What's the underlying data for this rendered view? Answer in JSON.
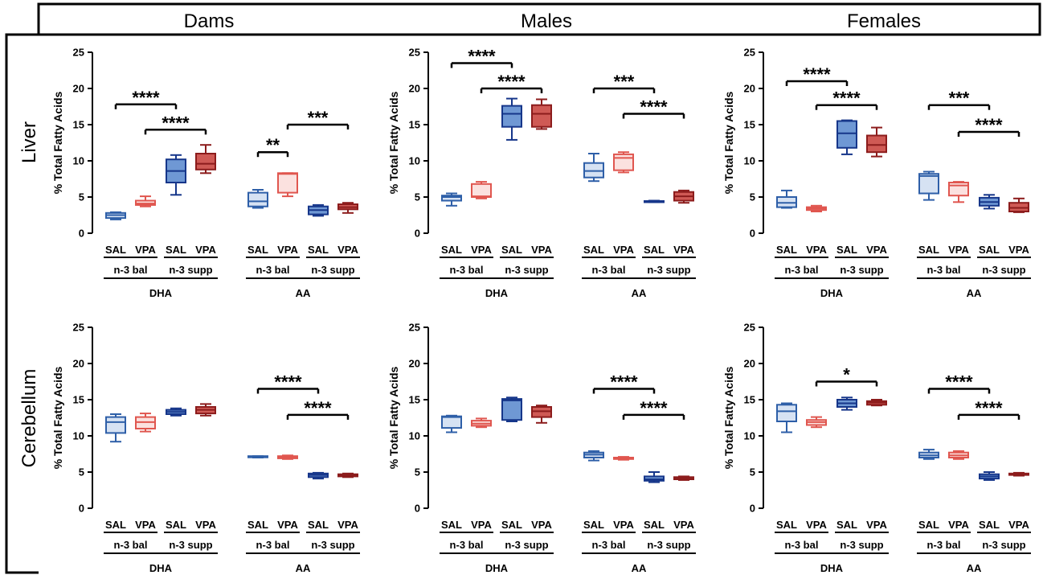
{
  "column_headers": [
    "Dams",
    "Males",
    "Females"
  ],
  "row_labels": [
    "Liver",
    "Cerebellum"
  ],
  "ylabel": "% Total Fatty Acids",
  "yticks": [
    "0",
    "5",
    "10",
    "15",
    "20",
    "25"
  ],
  "treatment_labels": [
    "SAL",
    "VPA",
    "SAL",
    "VPA"
  ],
  "diet_labels": [
    "n-3 bal",
    "n-3 supp"
  ],
  "fatty_acid_labels": [
    "DHA",
    "AA"
  ],
  "colors": {
    "n3bal_SAL": {
      "fill": "#d6e2f3",
      "stroke": "#2e5fa8"
    },
    "n3bal_VPA": {
      "fill": "#fbe1df",
      "stroke": "#e0564f"
    },
    "n3supp_SAL": {
      "fill": "#6f98d4",
      "stroke": "#16368a"
    },
    "n3supp_VPA": {
      "fill": "#cf5a55",
      "stroke": "#8c1c1c"
    }
  },
  "chart_data": [
    {
      "type": "box",
      "tissue": "Liver",
      "group": "Dams",
      "ylim": [
        0,
        25
      ],
      "boxes": [
        {
          "whislo": 1.9,
          "q1": 2.1,
          "med": 2.5,
          "q3": 2.8,
          "whishi": 2.9
        },
        {
          "whislo": 3.7,
          "q1": 3.9,
          "med": 4.1,
          "q3": 4.5,
          "whishi": 5.1
        },
        {
          "whislo": 5.3,
          "q1": 7.0,
          "med": 8.6,
          "q3": 10.2,
          "whishi": 10.8
        },
        {
          "whislo": 8.3,
          "q1": 8.8,
          "med": 9.6,
          "q3": 11.0,
          "whishi": 12.2
        },
        {
          "whislo": 3.5,
          "q1": 3.7,
          "med": 4.4,
          "q3": 5.6,
          "whishi": 6.0
        },
        {
          "whislo": 5.1,
          "q1": 5.6,
          "med": 8.2,
          "q3": 8.3,
          "whishi": 8.3
        },
        {
          "whislo": 2.4,
          "q1": 2.6,
          "med": 3.2,
          "q3": 3.7,
          "whishi": 3.9
        },
        {
          "whislo": 2.8,
          "q1": 3.3,
          "med": 3.6,
          "q3": 4.0,
          "whishi": 4.2
        }
      ],
      "comparisons": [
        {
          "from": 0,
          "to": 2,
          "y": 17.8,
          "label": "****"
        },
        {
          "from": 1,
          "to": 3,
          "y": 14.3,
          "label": "****"
        },
        {
          "from": 4,
          "to": 5,
          "y": 11.2,
          "label": "**"
        },
        {
          "from": 5,
          "to": 7,
          "y": 15.0,
          "label": "***"
        }
      ]
    },
    {
      "type": "box",
      "tissue": "Liver",
      "group": "Males",
      "ylim": [
        0,
        25
      ],
      "boxes": [
        {
          "whislo": 3.8,
          "q1": 4.5,
          "med": 5.0,
          "q3": 5.2,
          "whishi": 5.5
        },
        {
          "whislo": 4.8,
          "q1": 5.0,
          "med": 5.1,
          "q3": 6.8,
          "whishi": 7.1
        },
        {
          "whislo": 12.9,
          "q1": 14.7,
          "med": 16.5,
          "q3": 17.6,
          "whishi": 18.6
        },
        {
          "whislo": 14.4,
          "q1": 14.7,
          "med": 16.5,
          "q3": 17.7,
          "whishi": 18.5
        },
        {
          "whislo": 7.2,
          "q1": 7.7,
          "med": 8.6,
          "q3": 9.7,
          "whishi": 11.0
        },
        {
          "whislo": 8.4,
          "q1": 8.7,
          "med": 10.4,
          "q3": 10.9,
          "whishi": 11.2
        },
        {
          "whislo": 4.3,
          "q1": 4.35,
          "med": 4.4,
          "q3": 4.45,
          "whishi": 4.5
        },
        {
          "whislo": 4.2,
          "q1": 4.5,
          "med": 5.1,
          "q3": 5.7,
          "whishi": 5.9
        }
      ],
      "comparisons": [
        {
          "from": 0,
          "to": 2,
          "y": 23.5,
          "label": "****"
        },
        {
          "from": 1,
          "to": 3,
          "y": 20.0,
          "label": "****"
        },
        {
          "from": 4,
          "to": 6,
          "y": 20.0,
          "label": "***"
        },
        {
          "from": 5,
          "to": 7,
          "y": 16.5,
          "label": "****"
        }
      ]
    },
    {
      "type": "box",
      "tissue": "Liver",
      "group": "Females",
      "ylim": [
        0,
        25
      ],
      "boxes": [
        {
          "whislo": 3.5,
          "q1": 3.6,
          "med": 4.2,
          "q3": 5.0,
          "whishi": 5.9
        },
        {
          "whislo": 3.0,
          "q1": 3.2,
          "med": 3.4,
          "q3": 3.6,
          "whishi": 3.8
        },
        {
          "whislo": 10.9,
          "q1": 11.8,
          "med": 13.8,
          "q3": 15.5,
          "whishi": 15.6
        },
        {
          "whislo": 10.6,
          "q1": 11.2,
          "med": 12.2,
          "q3": 13.5,
          "whishi": 14.6
        },
        {
          "whislo": 4.6,
          "q1": 5.5,
          "med": 7.9,
          "q3": 8.2,
          "whishi": 8.5
        },
        {
          "whislo": 4.3,
          "q1": 5.2,
          "med": 6.6,
          "q3": 7.0,
          "whishi": 7.1
        },
        {
          "whislo": 3.4,
          "q1": 3.8,
          "med": 4.3,
          "q3": 4.9,
          "whishi": 5.3
        },
        {
          "whislo": 2.9,
          "q1": 3.0,
          "med": 3.5,
          "q3": 4.2,
          "whishi": 4.8
        }
      ],
      "comparisons": [
        {
          "from": 0,
          "to": 2,
          "y": 21.0,
          "label": "****"
        },
        {
          "from": 1,
          "to": 3,
          "y": 17.7,
          "label": "****"
        },
        {
          "from": 4,
          "to": 6,
          "y": 17.7,
          "label": "***"
        },
        {
          "from": 5,
          "to": 7,
          "y": 14.0,
          "label": "****"
        }
      ]
    },
    {
      "type": "box",
      "tissue": "Cerebellum",
      "group": "Dams",
      "ylim": [
        0,
        25
      ],
      "boxes": [
        {
          "whislo": 9.2,
          "q1": 10.4,
          "med": 11.9,
          "q3": 12.6,
          "whishi": 13.0
        },
        {
          "whislo": 10.6,
          "q1": 11.0,
          "med": 11.9,
          "q3": 12.6,
          "whishi": 13.1
        },
        {
          "whislo": 12.8,
          "q1": 13.0,
          "med": 13.3,
          "q3": 13.6,
          "whishi": 13.8
        },
        {
          "whislo": 12.8,
          "q1": 13.1,
          "med": 13.6,
          "q3": 14.0,
          "whishi": 14.4
        },
        {
          "whislo": 7.0,
          "q1": 7.05,
          "med": 7.1,
          "q3": 7.2,
          "whishi": 7.2
        },
        {
          "whislo": 6.8,
          "q1": 6.9,
          "med": 7.0,
          "q3": 7.2,
          "whishi": 7.3
        },
        {
          "whislo": 4.1,
          "q1": 4.3,
          "med": 4.6,
          "q3": 4.8,
          "whishi": 4.9
        },
        {
          "whislo": 4.3,
          "q1": 4.4,
          "med": 4.5,
          "q3": 4.7,
          "whishi": 4.8
        }
      ],
      "comparisons": [
        {
          "from": 4,
          "to": 6,
          "y": 16.5,
          "label": "****"
        },
        {
          "from": 5,
          "to": 7,
          "y": 12.9,
          "label": "****"
        }
      ]
    },
    {
      "type": "box",
      "tissue": "Cerebellum",
      "group": "Males",
      "ylim": [
        0,
        25
      ],
      "boxes": [
        {
          "whislo": 10.5,
          "q1": 11.1,
          "med": 12.6,
          "q3": 12.7,
          "whishi": 12.8
        },
        {
          "whislo": 11.2,
          "q1": 11.4,
          "med": 11.7,
          "q3": 12.1,
          "whishi": 12.4
        },
        {
          "whislo": 12.0,
          "q1": 12.2,
          "med": 14.9,
          "q3": 15.1,
          "whishi": 15.3
        },
        {
          "whislo": 11.8,
          "q1": 12.6,
          "med": 13.4,
          "q3": 14.0,
          "whishi": 14.2
        },
        {
          "whislo": 6.6,
          "q1": 7.0,
          "med": 7.4,
          "q3": 7.7,
          "whishi": 7.9
        },
        {
          "whislo": 6.7,
          "q1": 6.8,
          "med": 6.9,
          "q3": 7.0,
          "whishi": 7.1
        },
        {
          "whislo": 3.6,
          "q1": 3.8,
          "med": 4.0,
          "q3": 4.4,
          "whishi": 5.0
        },
        {
          "whislo": 3.9,
          "q1": 4.0,
          "med": 4.1,
          "q3": 4.3,
          "whishi": 4.4
        }
      ],
      "comparisons": [
        {
          "from": 4,
          "to": 6,
          "y": 16.5,
          "label": "****"
        },
        {
          "from": 5,
          "to": 7,
          "y": 12.9,
          "label": "****"
        }
      ]
    },
    {
      "type": "box",
      "tissue": "Cerebellum",
      "group": "Females",
      "ylim": [
        0,
        25
      ],
      "boxes": [
        {
          "whislo": 10.5,
          "q1": 12.0,
          "med": 13.4,
          "q3": 14.3,
          "whishi": 14.5
        },
        {
          "whislo": 11.2,
          "q1": 11.5,
          "med": 11.9,
          "q3": 12.2,
          "whishi": 12.6
        },
        {
          "whislo": 13.6,
          "q1": 14.0,
          "med": 14.5,
          "q3": 15.0,
          "whishi": 15.3
        },
        {
          "whislo": 14.2,
          "q1": 14.3,
          "med": 14.6,
          "q3": 14.8,
          "whishi": 15.0
        },
        {
          "whislo": 6.8,
          "q1": 7.0,
          "med": 7.3,
          "q3": 7.7,
          "whishi": 8.1
        },
        {
          "whislo": 6.8,
          "q1": 7.0,
          "med": 7.3,
          "q3": 7.7,
          "whishi": 7.9
        },
        {
          "whislo": 3.9,
          "q1": 4.1,
          "med": 4.4,
          "q3": 4.7,
          "whishi": 5.0
        },
        {
          "whislo": 4.5,
          "q1": 4.6,
          "med": 4.7,
          "q3": 4.8,
          "whishi": 4.9
        }
      ],
      "comparisons": [
        {
          "from": 1,
          "to": 3,
          "y": 17.5,
          "label": "*"
        },
        {
          "from": 4,
          "to": 6,
          "y": 16.5,
          "label": "****"
        },
        {
          "from": 5,
          "to": 7,
          "y": 12.9,
          "label": "****"
        }
      ]
    }
  ]
}
